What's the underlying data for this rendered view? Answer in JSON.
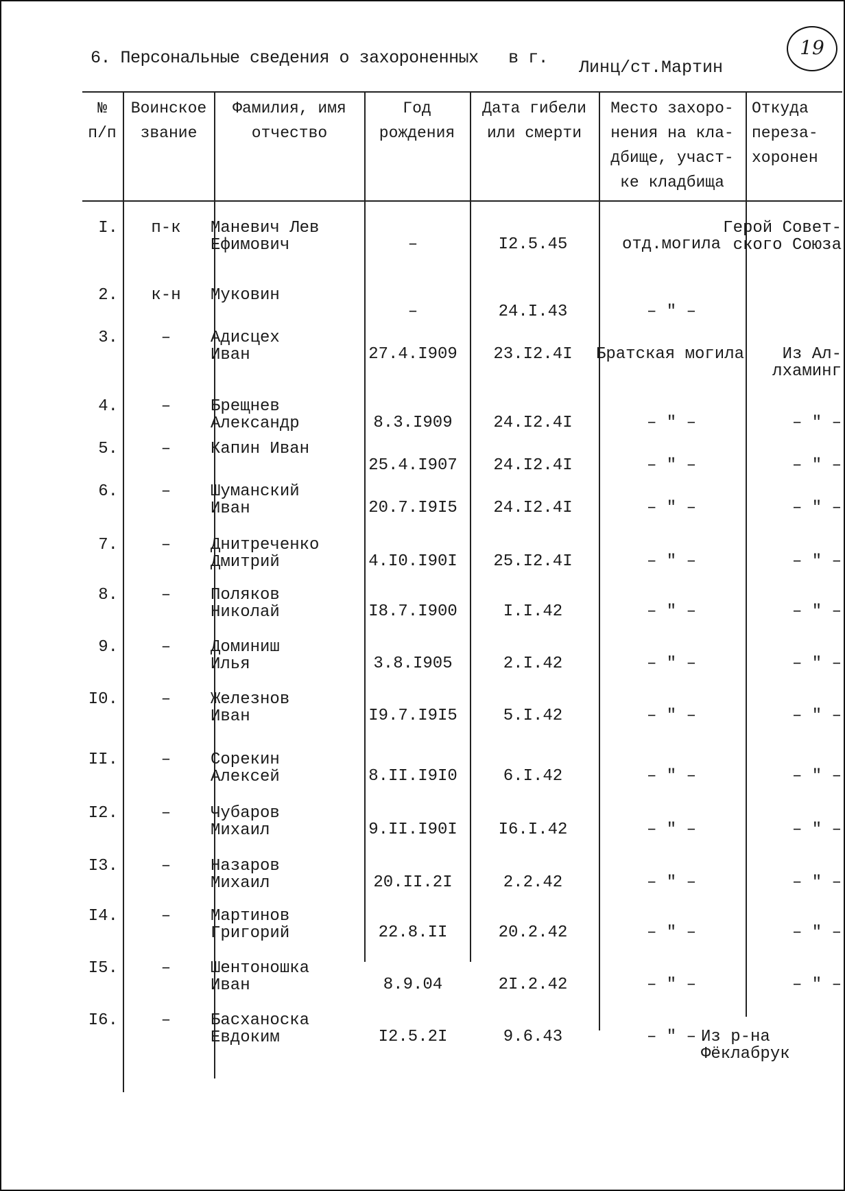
{
  "header": {
    "title": "6. Персональные сведения о захороненных   в г.",
    "place": "Линц/ст.Мартин",
    "page_number": "19"
  },
  "columns": [
    "№\nп/п",
    "Воинское\nзвание",
    "Фамилия, имя\nотчество",
    "Год\nрождения",
    "Дата гибели\nили смерти",
    "Место захоро-\nнения на кла-\nдбище, участ-\nке кладбища",
    "Откуда\nпереза-\nхоронен"
  ],
  "rows": [
    {
      "num": "I.",
      "rank": "п-к",
      "name": "Маневич Лев\nЕфимович",
      "birth": "–",
      "death": "I2.5.45",
      "grave": "отд.могила",
      "from": "Герой Совет-\nского Союза"
    },
    {
      "num": "2.",
      "rank": "к-н",
      "name": "Муковин",
      "birth": "–",
      "death": "24.I.43",
      "grave": "– \" –",
      "from": ""
    },
    {
      "num": "3.",
      "rank": "–",
      "name": "Адисцех\nИван",
      "birth": "27.4.I909",
      "death": "23.I2.4I",
      "grave": "Братская могила",
      "from": "Из Ал-\nлхаминг"
    },
    {
      "num": "4.",
      "rank": "–",
      "name": "Брещнев\nАлександр",
      "birth": "8.3.I909",
      "death": "24.I2.4I",
      "grave": "– \" –",
      "from": "– \" –"
    },
    {
      "num": "5.",
      "rank": "–",
      "name": "Капин Иван",
      "birth": "25.4.I907",
      "death": "24.I2.4I",
      "grave": "– \" –",
      "from": "– \" –"
    },
    {
      "num": "6.",
      "rank": "–",
      "name": "Шуманский\nИван",
      "birth": "20.7.I9I5",
      "death": "24.I2.4I",
      "grave": "– \" –",
      "from": "– \" –"
    },
    {
      "num": "7.",
      "rank": "–",
      "name": "Днитреченко\nДмитрий",
      "birth": "4.I0.I90I",
      "death": "25.I2.4I",
      "grave": "– \" –",
      "from": "– \" –"
    },
    {
      "num": "8.",
      "rank": "–",
      "name": "Поляков\nНиколай",
      "birth": "I8.7.I900",
      "death": "I.I.42",
      "grave": "– \" –",
      "from": "– \" –"
    },
    {
      "num": "9.",
      "rank": "–",
      "name": "Доминиш\nИлья",
      "birth": "3.8.I905",
      "death": "2.I.42",
      "grave": "– \" –",
      "from": "– \" –"
    },
    {
      "num": "I0.",
      "rank": "–",
      "name": "Железнов\nИван",
      "birth": "I9.7.I9I5",
      "death": "5.I.42",
      "grave": "– \" –",
      "from": "– \" –"
    },
    {
      "num": "II.",
      "rank": "–",
      "name": "Сорекин\nАлексей",
      "birth": "8.II.I9I0",
      "death": "6.I.42",
      "grave": "– \" –",
      "from": "– \" –"
    },
    {
      "num": "I2.",
      "rank": "–",
      "name": "Чубаров\nМихаил",
      "birth": "9.II.I90I",
      "death": "I6.I.42",
      "grave": "– \" –",
      "from": "– \" –"
    },
    {
      "num": "I3.",
      "rank": "–",
      "name": "Назаров\nМихаил",
      "birth": "20.II.2I",
      "death": "2.2.42",
      "grave": "– \" –",
      "from": "– \" –"
    },
    {
      "num": "I4.",
      "rank": "–",
      "name": "Мартинов\nГригорий",
      "birth": "22.8.II",
      "death": "20.2.42",
      "grave": "– \" –",
      "from": "– \" –"
    },
    {
      "num": "I5.",
      "rank": "–",
      "name": "Шентоношка\nИван",
      "birth": "8.9.04",
      "death": "2I.2.42",
      "grave": "– \" –",
      "from": "– \" –"
    },
    {
      "num": "I6.",
      "rank": "–",
      "name": "Басханоска\nЕвдоким",
      "birth": "I2.5.2I",
      "death": "9.6.43",
      "grave": "– \" –",
      "from": "Из р-на\nФёклабрук"
    }
  ]
}
